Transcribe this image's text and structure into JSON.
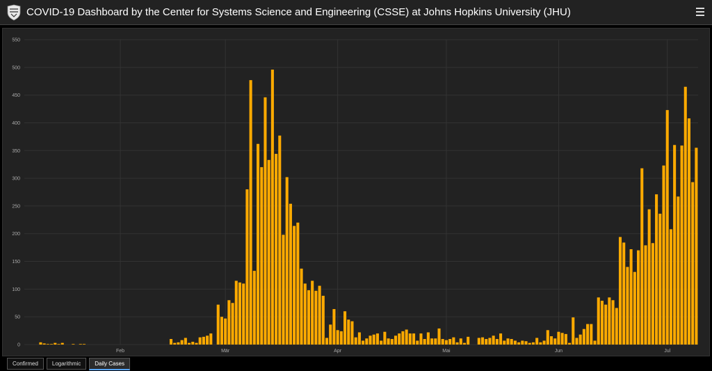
{
  "header": {
    "title": "COVID-19 Dashboard by the Center for Systems Science and Engineering (CSSE) at Johns Hopkins University (JHU)"
  },
  "icons": {
    "logo": "jhu-shield-icon",
    "menu": "hamburger-menu-icon"
  },
  "tabs": [
    {
      "label": "Confirmed",
      "active": false
    },
    {
      "label": "Logarithmic",
      "active": false
    },
    {
      "label": "Daily Cases",
      "active": true
    }
  ],
  "colors": {
    "bar": "#ffaa00",
    "background": "#222222",
    "grid": "#333333",
    "tick_text": "#aaaaaa"
  },
  "chart_data": {
    "type": "bar",
    "title": "",
    "xlabel": "",
    "ylabel": "",
    "ylim": [
      0,
      550
    ],
    "y_ticks": [
      0,
      50,
      100,
      150,
      200,
      250,
      300,
      350,
      400,
      450,
      500,
      550
    ],
    "x_ticks": [
      {
        "label": "Feb",
        "index": 26
      },
      {
        "label": "Mär",
        "index": 55
      },
      {
        "label": "Apr",
        "index": 86
      },
      {
        "label": "Mai",
        "index": 116
      },
      {
        "label": "Jun",
        "index": 147
      },
      {
        "label": "Jul",
        "index": 177
      }
    ],
    "grid": true,
    "values": [
      0,
      0,
      0,
      0,
      4,
      2,
      1,
      1,
      3,
      1,
      3,
      0,
      0,
      1,
      0,
      1,
      1,
      0,
      0,
      0,
      0,
      0,
      0,
      0,
      0,
      0,
      0,
      0,
      0,
      0,
      0,
      0,
      0,
      0,
      0,
      0,
      0,
      0,
      0,
      0,
      10,
      3,
      4,
      8,
      12,
      3,
      5,
      3,
      13,
      14,
      16,
      20,
      0,
      72,
      50,
      47,
      80,
      75,
      115,
      112,
      110,
      280,
      477,
      133,
      362,
      320,
      446,
      333,
      496,
      344,
      377,
      198,
      302,
      254,
      214,
      220,
      137,
      110,
      98,
      115,
      97,
      106,
      88,
      12,
      36,
      64,
      26,
      24,
      60,
      45,
      42,
      13,
      22,
      7,
      11,
      16,
      18,
      20,
      7,
      23,
      11,
      10,
      16,
      20,
      24,
      27,
      20,
      20,
      7,
      20,
      10,
      22,
      11,
      11,
      29,
      10,
      8,
      10,
      13,
      4,
      11,
      3,
      14,
      0,
      0,
      12,
      13,
      10,
      12,
      16,
      10,
      20,
      7,
      11,
      10,
      7,
      4,
      7,
      6,
      3,
      4,
      12,
      4,
      7,
      26,
      15,
      11,
      23,
      21,
      19,
      3,
      49,
      12,
      18,
      28,
      37,
      37,
      7,
      85,
      79,
      72,
      85,
      80,
      66,
      194,
      184,
      140,
      172,
      131,
      170,
      318,
      179,
      244,
      183,
      271,
      236,
      323,
      423,
      208,
      360,
      267,
      359,
      465,
      408,
      293,
      355
    ]
  }
}
